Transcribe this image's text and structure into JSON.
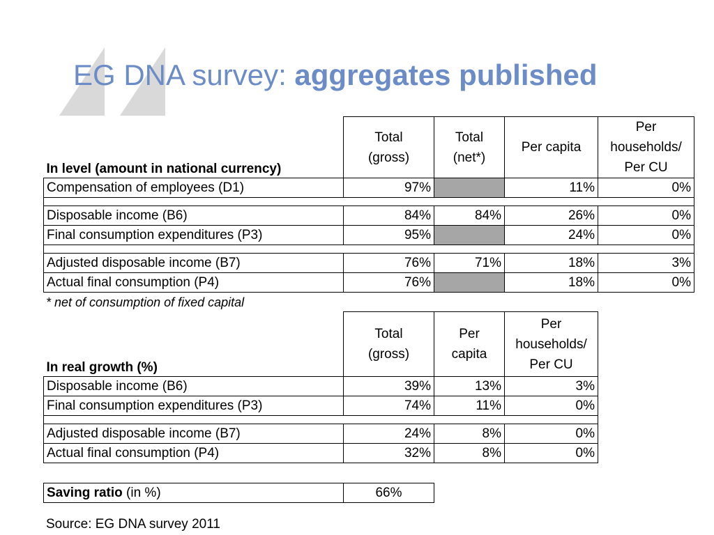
{
  "title": {
    "plain": "EG DNA survey: ",
    "bold": "aggregates published"
  },
  "level_table": {
    "heading": "In level (amount in national currency)",
    "columns": [
      "Total\n(gross)",
      "Total\n(net*)",
      "Per capita",
      "Per\nhouseholds/\nPer CU"
    ],
    "groups": [
      [
        {
          "label": "Compensation of employees (D1)",
          "values": [
            "97%",
            null,
            "11%",
            "0%"
          ]
        }
      ],
      [
        {
          "label": "Disposable income (B6)",
          "values": [
            "84%",
            "84%",
            "26%",
            "0%"
          ]
        },
        {
          "label": "Final consumption expenditures (P3)",
          "values": [
            "95%",
            null,
            "24%",
            "0%"
          ]
        }
      ],
      [
        {
          "label": "Adjusted disposable income (B7)",
          "values": [
            "76%",
            "71%",
            "18%",
            "3%"
          ]
        },
        {
          "label": "Actual final consumption (P4)",
          "values": [
            "76%",
            null,
            "18%",
            "0%"
          ]
        }
      ]
    ]
  },
  "note": "* net of consumption of fixed capital",
  "growth_table": {
    "heading": "In real growth (%)",
    "columns": [
      "Total\n(gross)",
      "Per\ncapita",
      "Per\nhouseholds/\nPer CU"
    ],
    "groups": [
      [
        {
          "label": "Disposable income (B6)",
          "values": [
            "39%",
            "13%",
            "3%"
          ]
        },
        {
          "label": "Final consumption expenditures (P3)",
          "values": [
            "74%",
            "11%",
            "0%"
          ]
        }
      ],
      [
        {
          "label": "Adjusted disposable income (B7)",
          "values": [
            "24%",
            "8%",
            "0%"
          ]
        },
        {
          "label": "Actual final consumption (P4)",
          "values": [
            "32%",
            "8%",
            "0%"
          ]
        }
      ]
    ]
  },
  "saving": {
    "label": "Saving ratio",
    "unit": " (in %)",
    "value": "66%"
  },
  "source": "Source: EG DNA survey 2011"
}
